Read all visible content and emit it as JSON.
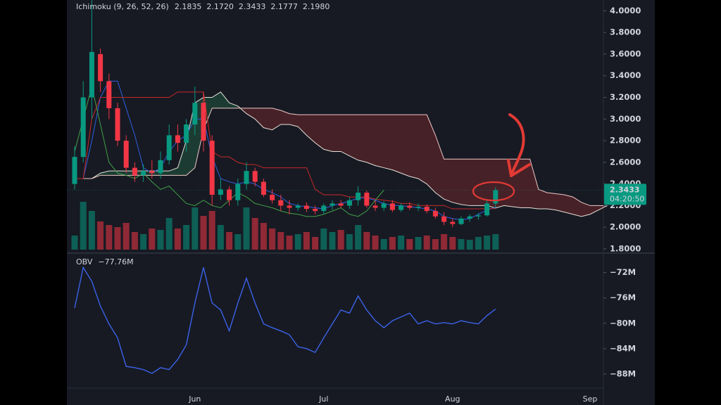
{
  "chart_data": {
    "type": "candlestick",
    "indicator": {
      "name": "Ichimoku (9, 26, 52, 26)",
      "readouts": [
        {
          "text": "2.1835",
          "color": "#3d6ef0"
        },
        {
          "text": "2.1720",
          "color": "#e0333a"
        },
        {
          "text": "2.3433",
          "color": "#4caf50"
        },
        {
          "text": "2.1777",
          "color": "#e6e1d8"
        },
        {
          "text": "2.1980",
          "color": "#f0b8b8"
        }
      ]
    },
    "categories": [
      null,
      null,
      null,
      null,
      null,
      null,
      null,
      null,
      null,
      null,
      null,
      null,
      null,
      null,
      "Jun",
      null,
      null,
      null,
      null,
      null,
      null,
      null,
      null,
      null,
      null,
      null,
      null,
      null,
      null,
      "Jul",
      null,
      null,
      null,
      null,
      null,
      null,
      null,
      null,
      null,
      null,
      null,
      null,
      null,
      null,
      "Aug",
      null,
      null,
      null,
      null,
      null,
      null,
      null,
      null,
      null,
      null,
      null,
      null,
      null,
      null,
      null,
      "Sep",
      null,
      null
    ],
    "open": [
      2.4,
      2.65,
      3.2,
      3.6,
      3.35,
      3.1,
      2.8,
      2.55,
      2.48,
      2.52,
      2.5,
      2.62,
      2.85,
      2.78,
      2.95,
      3.15,
      2.8,
      2.3,
      2.35,
      2.25,
      2.4,
      2.52,
      2.42,
      2.3,
      2.25,
      2.2,
      2.18,
      2.2,
      2.17,
      2.15,
      2.2,
      2.22,
      2.2,
      2.25,
      2.32,
      2.2,
      2.18,
      2.22,
      2.16,
      2.2,
      2.18,
      2.19,
      2.15,
      2.1,
      2.05,
      2.03,
      2.08,
      2.1,
      2.11,
      2.22,
      null,
      null,
      null,
      null,
      null,
      null,
      null,
      null,
      null,
      null,
      null,
      null,
      null
    ],
    "high": [
      2.75,
      3.35,
      4.1,
      3.65,
      3.42,
      3.15,
      2.85,
      2.6,
      2.58,
      2.62,
      2.7,
      2.95,
      2.95,
      3.0,
      3.3,
      3.25,
      2.85,
      2.45,
      2.38,
      2.45,
      2.6,
      2.55,
      2.45,
      2.35,
      2.3,
      2.25,
      2.22,
      2.23,
      2.2,
      2.22,
      2.25,
      2.25,
      2.28,
      2.38,
      2.34,
      2.25,
      2.24,
      2.25,
      2.22,
      2.23,
      2.22,
      2.21,
      2.18,
      2.14,
      2.08,
      2.1,
      2.12,
      2.13,
      2.25,
      2.37,
      null,
      null,
      null,
      null,
      null,
      null,
      null,
      null,
      null,
      null,
      null,
      null,
      null
    ],
    "low": [
      2.35,
      2.6,
      3.0,
      3.25,
      3.0,
      2.75,
      2.5,
      2.42,
      2.42,
      2.45,
      2.45,
      2.58,
      2.7,
      2.7,
      2.85,
      2.7,
      2.2,
      2.25,
      2.2,
      2.2,
      2.35,
      2.38,
      2.28,
      2.22,
      2.15,
      2.12,
      2.15,
      2.14,
      2.12,
      2.12,
      2.16,
      2.18,
      2.17,
      2.2,
      2.18,
      2.15,
      2.15,
      2.14,
      2.14,
      2.16,
      2.15,
      2.13,
      2.08,
      2.02,
      2.0,
      2.02,
      2.05,
      2.07,
      2.1,
      2.18,
      null,
      null,
      null,
      null,
      null,
      null,
      null,
      null,
      null,
      null,
      null,
      null,
      null
    ],
    "close": [
      2.65,
      3.2,
      3.62,
      3.35,
      3.1,
      2.8,
      2.55,
      2.48,
      2.52,
      2.5,
      2.62,
      2.85,
      2.78,
      2.95,
      3.15,
      2.8,
      2.3,
      2.35,
      2.25,
      2.4,
      2.52,
      2.42,
      2.3,
      2.25,
      2.2,
      2.18,
      2.2,
      2.17,
      2.15,
      2.2,
      2.22,
      2.2,
      2.25,
      2.32,
      2.2,
      2.18,
      2.22,
      2.16,
      2.2,
      2.18,
      2.19,
      2.15,
      2.1,
      2.05,
      2.03,
      2.08,
      2.1,
      2.11,
      2.22,
      2.3433,
      null,
      null,
      null,
      null,
      null,
      null,
      null,
      null,
      null,
      null,
      null,
      null,
      null
    ],
    "volume": [
      20,
      68,
      55,
      40,
      35,
      32,
      38,
      25,
      22,
      30,
      28,
      45,
      30,
      35,
      60,
      48,
      55,
      35,
      25,
      22,
      60,
      45,
      38,
      30,
      25,
      20,
      22,
      25,
      18,
      30,
      25,
      28,
      22,
      35,
      25,
      20,
      15,
      18,
      20,
      15,
      18,
      20,
      15,
      22,
      18,
      15,
      14,
      18,
      20,
      22,
      null,
      null,
      null,
      null,
      null,
      null,
      null,
      null,
      null,
      null,
      null,
      null,
      null
    ],
    "vlim": [
      0,
      100
    ],
    "up_color": "#089981",
    "down_color": "#f23645",
    "lines": [
      {
        "color": "#2f5fe0",
        "values": [
          2.45,
          2.45,
          2.8,
          3.2,
          3.35,
          3.35,
          3.1,
          2.85,
          2.55,
          2.5,
          2.55,
          2.7,
          2.8,
          2.85,
          3.0,
          3.0,
          2.65,
          2.45,
          2.42,
          2.4,
          2.42,
          2.4,
          2.35,
          2.32,
          2.28,
          2.22,
          2.2,
          2.19,
          2.18,
          2.17,
          2.2,
          2.22,
          2.24,
          2.27,
          2.27,
          2.25,
          2.22,
          2.2,
          2.2,
          2.19,
          2.18,
          2.17,
          2.15,
          2.1,
          2.08,
          2.07,
          2.08,
          2.12,
          2.16,
          2.1835,
          null,
          null,
          null,
          null,
          null,
          null,
          null,
          null,
          null,
          null,
          null,
          null,
          null
        ]
      },
      {
        "color": "#c62828",
        "values": [
          2.45,
          2.45,
          3.0,
          3.2,
          3.2,
          3.2,
          3.2,
          3.2,
          3.2,
          3.2,
          3.2,
          3.2,
          3.25,
          3.25,
          3.25,
          3.25,
          2.7,
          2.65,
          2.65,
          2.6,
          2.58,
          2.58,
          2.55,
          2.55,
          2.55,
          2.55,
          2.55,
          2.55,
          2.35,
          2.3,
          2.3,
          2.3,
          2.28,
          2.28,
          2.28,
          2.26,
          2.25,
          2.24,
          2.22,
          2.22,
          2.2,
          2.2,
          2.2,
          2.2,
          2.17,
          2.17,
          2.17,
          2.17,
          2.172,
          2.172,
          null,
          null,
          null,
          null,
          null,
          null,
          null,
          null,
          null,
          null,
          null,
          null,
          null
        ]
      },
      {
        "color": "#43a047",
        "values": [
          2.7,
          3.0,
          3.3,
          2.95,
          2.6,
          2.5,
          2.48,
          2.45,
          2.5,
          2.42,
          2.35,
          2.38,
          2.3,
          2.22,
          2.2,
          2.25,
          2.2,
          2.18,
          2.25,
          2.32,
          2.28,
          2.22,
          2.2,
          2.18,
          2.15,
          2.13,
          2.12,
          2.1,
          2.1,
          2.12,
          2.15,
          2.18,
          2.12,
          2.1,
          2.15,
          2.25,
          2.3433,
          null,
          null,
          null,
          null,
          null,
          null,
          null,
          null,
          null,
          null,
          null,
          null,
          null,
          null,
          null,
          null,
          null,
          null,
          null,
          null,
          null,
          null,
          null,
          null,
          null,
          null
        ]
      }
    ],
    "span_a": {
      "color": "#e6e1d8",
      "values": [
        2.45,
        2.45,
        2.45,
        2.5,
        2.52,
        2.52,
        2.52,
        2.52,
        2.52,
        2.52,
        2.52,
        2.52,
        2.55,
        2.8,
        3.15,
        3.2,
        3.2,
        3.25,
        3.15,
        3.12,
        3.05,
        3.0,
        2.92,
        2.9,
        2.95,
        2.95,
        2.93,
        2.85,
        2.78,
        2.72,
        2.7,
        2.7,
        2.66,
        2.62,
        2.6,
        2.57,
        2.55,
        2.53,
        2.5,
        2.47,
        2.45,
        2.4,
        2.32,
        2.26,
        2.23,
        2.21,
        2.2,
        2.2,
        2.2,
        2.1777,
        2.2,
        2.19,
        2.18,
        2.18,
        2.17,
        2.17,
        2.16,
        2.14,
        2.12,
        2.1,
        2.12,
        2.16,
        2.2
      ]
    },
    "span_b": {
      "color": "#f0c8c8",
      "values": [
        2.45,
        2.45,
        2.45,
        2.48,
        2.48,
        2.48,
        2.48,
        2.48,
        2.48,
        2.48,
        2.48,
        2.48,
        2.48,
        2.48,
        2.55,
        2.9,
        3.1,
        3.1,
        3.1,
        3.1,
        3.1,
        3.1,
        3.1,
        3.1,
        3.08,
        3.05,
        3.04,
        3.04,
        3.04,
        3.04,
        3.04,
        3.04,
        3.04,
        3.04,
        3.04,
        3.04,
        3.04,
        3.04,
        3.04,
        3.04,
        3.04,
        3.04,
        2.85,
        2.63,
        2.63,
        2.63,
        2.63,
        2.63,
        2.63,
        2.63,
        2.63,
        2.63,
        2.63,
        2.63,
        2.35,
        2.32,
        2.31,
        2.3,
        2.28,
        2.23,
        2.2,
        2.2,
        2.198
      ]
    },
    "cloud_colors": {
      "bear": "rgba(150,45,50,0.38)",
      "bull": "rgba(40,140,90,0.3)"
    },
    "last_price": 2.3433,
    "countdown": "04:20:50",
    "ylim": [
      1.8,
      4.1
    ],
    "yticks": [
      {
        "value": 1.8,
        "label": "1.8000"
      },
      {
        "value": 2.0,
        "label": "2.0000"
      },
      {
        "value": 2.2,
        "label": "2.2000"
      },
      {
        "value": 2.4,
        "label": "2.4000"
      },
      {
        "value": 2.6,
        "label": "2.6000"
      },
      {
        "value": 2.8,
        "label": "2.8000"
      },
      {
        "value": 3.0,
        "label": "3.0000"
      },
      {
        "value": 3.2,
        "label": "3.2000"
      },
      {
        "value": 3.4,
        "label": "3.4000"
      },
      {
        "value": 3.6,
        "label": "3.6000"
      },
      {
        "value": 3.8,
        "label": "3.8000"
      },
      {
        "value": 4.0,
        "label": "4.0000"
      }
    ],
    "grid": false,
    "obv": {
      "title": "OBV",
      "readout": "−77.76M",
      "color": "#3b62e8",
      "values": [
        -77.6,
        -71.2,
        -73.4,
        -77.3,
        -80.1,
        -82.3,
        -86.8,
        -87,
        -87.3,
        -87.9,
        -87,
        -87.3,
        -85.7,
        -83.4,
        -76.8,
        -71.2,
        -76.8,
        -77.9,
        -81.2,
        -76.8,
        -72.9,
        -76.8,
        -80.1,
        -80.7,
        -81.2,
        -81.8,
        -83.7,
        -84,
        -84.6,
        -82.3,
        -80.1,
        -77.9,
        -78.4,
        -75.7,
        -77.9,
        -79.6,
        -80.7,
        -79.6,
        -79,
        -78.4,
        -80.1,
        -79.6,
        -80.1,
        -79.9,
        -80.1,
        -79.6,
        -79.9,
        -80.1,
        -78.8,
        -77.76,
        null,
        null,
        null,
        null,
        null,
        null,
        null,
        null,
        null,
        null,
        null,
        null,
        null
      ],
      "ylim": [
        -90,
        -69.5
      ],
      "yticks": [
        {
          "value": -72,
          "label": "−72M"
        },
        {
          "value": -76,
          "label": "−76M"
        },
        {
          "value": -80,
          "label": "−80M"
        },
        {
          "value": -84,
          "label": "−84M"
        },
        {
          "value": -88,
          "label": "−88M"
        }
      ]
    }
  }
}
